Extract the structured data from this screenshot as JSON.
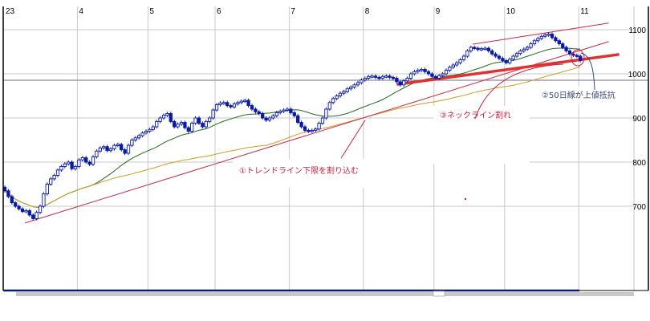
{
  "chart_data": {
    "type": "candlestick",
    "x_tick_labels": [
      "23",
      "4",
      "5",
      "6",
      "7",
      "8",
      "9",
      "10",
      "11"
    ],
    "x_tick_index": [
      0,
      21,
      41,
      60,
      81,
      102,
      122,
      142,
      163
    ],
    "y_ticks": [
      700,
      800,
      900,
      1000,
      1100
    ],
    "y_tick_labels": [
      "700",
      "800",
      "900",
      "1000",
      "1100"
    ],
    "ylim": [
      590,
      1155
    ],
    "grid": true,
    "closes": [
      735,
      722,
      708,
      700,
      694,
      688,
      690,
      680,
      672,
      686,
      700,
      728,
      750,
      762,
      770,
      782,
      790,
      796,
      800,
      785,
      790,
      805,
      810,
      800,
      795,
      812,
      825,
      832,
      835,
      826,
      830,
      838,
      840,
      828,
      820,
      838,
      850,
      855,
      860,
      866,
      870,
      874,
      880,
      892,
      900,
      906,
      910,
      892,
      880,
      886,
      890,
      878,
      870,
      888,
      900,
      888,
      880,
      892,
      900,
      918,
      930,
      934,
      935,
      928,
      925,
      932,
      935,
      938,
      940,
      928,
      920,
      914,
      910,
      900,
      895,
      900,
      905,
      912,
      915,
      918,
      920,
      912,
      905,
      890,
      880,
      872,
      870,
      872,
      875,
      888,
      900,
      920,
      935,
      944,
      950,
      956,
      960,
      966,
      970,
      975,
      980,
      986,
      990,
      994,
      995,
      992,
      990,
      994,
      995,
      992,
      990,
      982,
      975,
      984,
      990,
      1000,
      1005,
      1008,
      1010,
      1005,
      1000,
      994,
      990,
      996,
      1000,
      1008,
      1015,
      1020,
      1025,
      1032,
      1040,
      1052,
      1060,
      1058,
      1055,
      1057,
      1058,
      1052,
      1045,
      1040,
      1035,
      1030,
      1025,
      1033,
      1040,
      1046,
      1052,
      1056,
      1060,
      1068,
      1075,
      1080,
      1085,
      1088,
      1090,
      1082,
      1075,
      1068,
      1060,
      1052,
      1045,
      1042,
      1040,
      1030
    ],
    "moving_averages": [
      {
        "period": 25,
        "color": "#1f6b1f"
      },
      {
        "period": 75,
        "color": "#c8a020"
      }
    ],
    "trend_lines": [
      {
        "id": "trendline-lower",
        "from": [
          5.7,
          662
        ],
        "to": [
          171,
          1073
        ],
        "color": "#c8284a",
        "thick": false
      },
      {
        "id": "channel-upper",
        "from": [
          132.5,
          1067
        ],
        "to": [
          171,
          1115
        ],
        "color": "#c8284a",
        "thick": false
      },
      {
        "id": "neckline",
        "from": [
          111,
          976
        ],
        "to": [
          174,
          1044
        ],
        "color": "#e03030",
        "thick": true
      }
    ],
    "colors": {
      "candle": "#0a1aa8",
      "up_fill": "#ffffff",
      "down_fill": "#0a1aa8",
      "grid": "#c8c8c8",
      "annotation_red": "#d02040",
      "annotation_blue": "#3a4a7a"
    }
  },
  "annotations": {
    "trendline_break": "①トレンドライン下限を割り込む",
    "ma50_resistance": "②50日線が上値抵抗",
    "neckline_break": "③ネックライン割れ"
  }
}
